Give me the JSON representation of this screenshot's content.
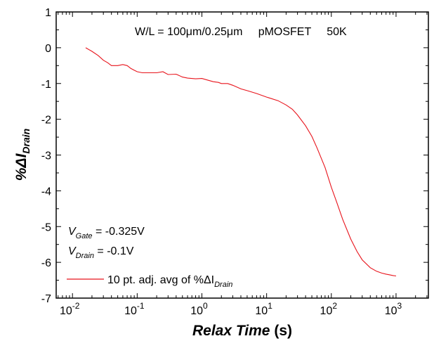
{
  "chart_data": {
    "type": "line",
    "xscale": "log",
    "xlim": [
      0.0056,
      3160
    ],
    "ylim": [
      -7,
      1
    ],
    "x_ticks": [
      0.01,
      0.1,
      1,
      10,
      100,
      1000
    ],
    "x_tick_labels": [
      {
        "base": "10",
        "exp": "-2"
      },
      {
        "base": "10",
        "exp": "-1"
      },
      {
        "base": "10",
        "exp": "0"
      },
      {
        "base": "10",
        "exp": "1"
      },
      {
        "base": "10",
        "exp": "2"
      },
      {
        "base": "10",
        "exp": "3"
      }
    ],
    "y_ticks": [
      1,
      0,
      -1,
      -2,
      -3,
      -4,
      -5,
      -6,
      -7
    ],
    "y_tick_labels": [
      "1",
      "0",
      "-1",
      "-2",
      "-3",
      "-4",
      "-5",
      "-6",
      "-7"
    ],
    "xlabel": {
      "italic": "Relax Time",
      "rest": " (s)"
    },
    "ylabel": {
      "main": "%ΔI",
      "sub": "Drain"
    },
    "annotations": {
      "top": "W/L = 100μm/0.25μm     pMOSFET     50K",
      "vgate": {
        "main": "V",
        "sub": "Gate",
        "rest": " = -0.325V"
      },
      "vdrain": {
        "main": "V",
        "sub": "Drain",
        "rest": " = -0.1V"
      }
    },
    "legend": {
      "position": "bottom-left",
      "entries": [
        {
          "main": "10 pt. adj. avg of %ΔI",
          "sub": "Drain",
          "color": "#e8141c"
        }
      ]
    },
    "series": [
      {
        "color": "#e8141c",
        "x": [
          0.016,
          0.02,
          0.025,
          0.03,
          0.035,
          0.04,
          0.05,
          0.06,
          0.07,
          0.08,
          0.09,
          0.1,
          0.12,
          0.15,
          0.2,
          0.25,
          0.3,
          0.4,
          0.5,
          0.6,
          0.8,
          1,
          1.2,
          1.5,
          1.8,
          2,
          2.5,
          3,
          4,
          5,
          7,
          10,
          15,
          20,
          25,
          30,
          40,
          50,
          60,
          80,
          100,
          120,
          150,
          200,
          250,
          300,
          400,
          500,
          600,
          700,
          800,
          900,
          1000
        ],
        "y": [
          0,
          -0.1,
          -0.22,
          -0.35,
          -0.42,
          -0.5,
          -0.5,
          -0.47,
          -0.5,
          -0.58,
          -0.63,
          -0.67,
          -0.7,
          -0.7,
          -0.7,
          -0.67,
          -0.75,
          -0.74,
          -0.82,
          -0.85,
          -0.87,
          -0.86,
          -0.9,
          -0.95,
          -0.97,
          -1.0,
          -1.0,
          -1.05,
          -1.15,
          -1.2,
          -1.28,
          -1.38,
          -1.48,
          -1.6,
          -1.72,
          -1.88,
          -2.18,
          -2.48,
          -2.8,
          -3.35,
          -3.9,
          -4.3,
          -4.8,
          -5.35,
          -5.7,
          -5.93,
          -6.15,
          -6.25,
          -6.3,
          -6.33,
          -6.35,
          -6.37,
          -6.38
        ]
      }
    ]
  }
}
